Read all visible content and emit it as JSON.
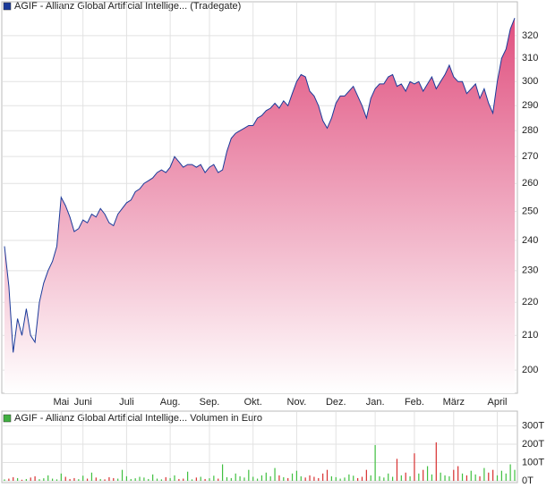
{
  "chart_data": [
    {
      "type": "area",
      "title": "AGIF - Allianz Global Artificial Intellige... (Tradegate)",
      "color": "#1a3a9a",
      "fill_color": "#e0507f",
      "log_scale": true,
      "grid": true,
      "categories": [
        null,
        null,
        null,
        null,
        null,
        null,
        null,
        null,
        null,
        null,
        null,
        null,
        null,
        "Mai",
        null,
        null,
        null,
        null,
        "Juni",
        null,
        null,
        null,
        null,
        null,
        null,
        null,
        null,
        null,
        "Juli",
        null,
        null,
        null,
        null,
        null,
        null,
        null,
        null,
        null,
        "Aug.",
        null,
        null,
        null,
        null,
        null,
        null,
        null,
        null,
        "Sep.",
        null,
        null,
        null,
        null,
        null,
        null,
        null,
        null,
        null,
        "Okt.",
        null,
        null,
        null,
        null,
        null,
        null,
        null,
        null,
        null,
        "Nov.",
        null,
        null,
        null,
        null,
        null,
        null,
        null,
        null,
        "Dez.",
        null,
        null,
        null,
        null,
        null,
        null,
        null,
        null,
        "Jan.",
        null,
        null,
        null,
        null,
        null,
        null,
        null,
        null,
        "Feb.",
        null,
        null,
        null,
        null,
        null,
        null,
        null,
        null,
        "März",
        null,
        null,
        null,
        null,
        null,
        null,
        null,
        null,
        null,
        "April",
        null,
        null,
        null,
        null
      ],
      "values": [
        238,
        225,
        205,
        215,
        210,
        218,
        210,
        208,
        220,
        226,
        230,
        233,
        238,
        255,
        252,
        248,
        243,
        244,
        247,
        246,
        249,
        248,
        251,
        249,
        246,
        245,
        249,
        251,
        253,
        254,
        257,
        258,
        260,
        261,
        262,
        264,
        265,
        264,
        266,
        270,
        268,
        266,
        267,
        267,
        266,
        267,
        264,
        266,
        267,
        264,
        265,
        272,
        277,
        279,
        280,
        281,
        282,
        282,
        285,
        286,
        288,
        289,
        291,
        289,
        292,
        290,
        295,
        300,
        303,
        302,
        296,
        294,
        290,
        284,
        281,
        285,
        291,
        294,
        294,
        296,
        298,
        294,
        290,
        285,
        293,
        297,
        299,
        299,
        302,
        303,
        298,
        299,
        296,
        300,
        299,
        300,
        296,
        299,
        302,
        297,
        300,
        303,
        307,
        302,
        300,
        300,
        295,
        297,
        299,
        293,
        297,
        291,
        287,
        300,
        310,
        314,
        323,
        328
      ],
      "ylim": [
        193.6,
        335.6
      ],
      "yticks": [
        200,
        210,
        220,
        230,
        240,
        250,
        260,
        270,
        280,
        290,
        300,
        310,
        320
      ]
    },
    {
      "type": "volume",
      "title": "AGIF - Allianz Global Artificial Intellige... Volumen in Euro",
      "color": "#40b040",
      "up_color": "#40c040",
      "down_color": "#d83030",
      "grid": true,
      "values": [
        8,
        12,
        20,
        15,
        6,
        10,
        18,
        25,
        9,
        14,
        30,
        12,
        8,
        40,
        22,
        10,
        15,
        9,
        28,
        12,
        45,
        18,
        10,
        8,
        20,
        15,
        12,
        60,
        25,
        10,
        14,
        22,
        18,
        10,
        35,
        12,
        8,
        20,
        15,
        30,
        10,
        12,
        50,
        8,
        18,
        22,
        10,
        14,
        28,
        12,
        90,
        20,
        15,
        40,
        25,
        18,
        60,
        22,
        12,
        30,
        45,
        25,
        70,
        30,
        20,
        15,
        40,
        55,
        25,
        18,
        30,
        22,
        15,
        40,
        60,
        25,
        20,
        12,
        18,
        35,
        28,
        15,
        22,
        60,
        30,
        195,
        25,
        18,
        40,
        22,
        120,
        30,
        45,
        25,
        150,
        40,
        60,
        80,
        35,
        210,
        45,
        30,
        25,
        60,
        80,
        40,
        30,
        55,
        35,
        25,
        70,
        45,
        60,
        30,
        55,
        40,
        90,
        60
      ],
      "ylim": [
        0,
        380
      ],
      "yticks": [
        {
          "value": 0,
          "label": "0T"
        },
        {
          "value": 100,
          "label": "100T"
        },
        {
          "value": 200,
          "label": "200T"
        },
        {
          "value": 300,
          "label": "300T"
        }
      ]
    }
  ]
}
